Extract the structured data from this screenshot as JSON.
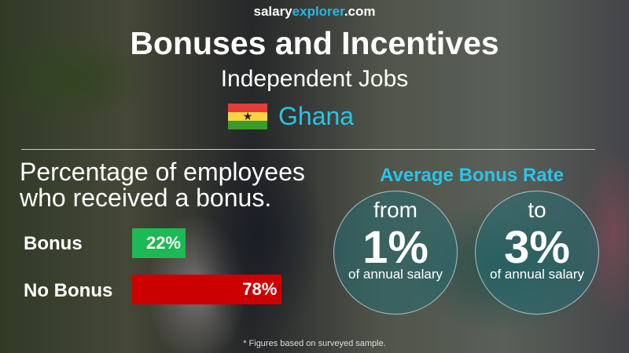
{
  "header": {
    "site_name_part1": "salary",
    "site_name_part2": "explorer",
    "site_name_part3": ".com",
    "title": "Bonuses and Incentives",
    "subtitle": "Independent Jobs",
    "country": "Ghana",
    "flag_icon": "ghana-flag-icon"
  },
  "percentage_section": {
    "title_line1": "Percentage of employees",
    "title_line2": "who received a bonus."
  },
  "chart_data": {
    "type": "bar",
    "categories": [
      "Bonus",
      "No Bonus"
    ],
    "values": [
      22,
      78
    ],
    "value_labels": [
      "22%",
      "78%"
    ],
    "colors": [
      "#1db954",
      "#cc0000"
    ],
    "orientation": "horizontal"
  },
  "average_bonus": {
    "title": "Average Bonus Rate",
    "from_label": "from",
    "from_value": "1%",
    "to_label": "to",
    "to_value": "3%",
    "unit_label": "of annual salary"
  },
  "footnote": "* Figures based on surveyed sample.",
  "colors": {
    "accent": "#29c4e8",
    "bonus": "#1db954",
    "no_bonus": "#cc0000"
  }
}
